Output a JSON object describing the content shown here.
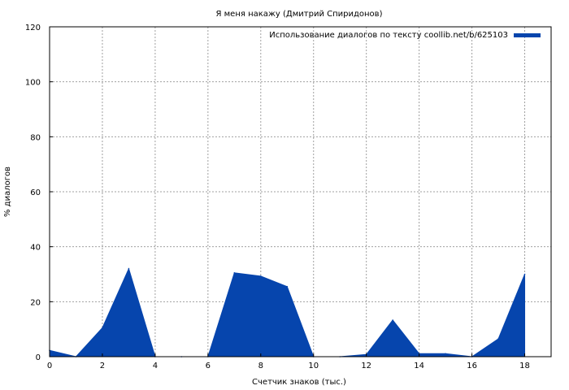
{
  "chart_data": {
    "type": "area",
    "title": "Я меня накажу (Дмитрий Спиридонов)",
    "xlabel": "Счетчик знаков (тыс.)",
    "ylabel": "% диалогов",
    "xlim": [
      0,
      19
    ],
    "ylim": [
      0,
      120
    ],
    "xticks": [
      0,
      2,
      4,
      6,
      8,
      10,
      12,
      14,
      16,
      18
    ],
    "yticks": [
      0,
      20,
      40,
      60,
      80,
      100,
      120
    ],
    "grid": true,
    "legend_position": "top-right",
    "series": [
      {
        "name": "Использование диалогов по тексту coollib.net/b/625103",
        "color": "#0645ad",
        "x": [
          0,
          1,
          2,
          3,
          4,
          5,
          6,
          7,
          8,
          9,
          10,
          11,
          12,
          13,
          14,
          15,
          16,
          17,
          18
        ],
        "y": [
          2.3,
          0,
          10.5,
          32,
          0,
          0,
          0,
          30.5,
          29.3,
          25.5,
          0,
          0,
          0.8,
          13.3,
          1.1,
          1.1,
          0,
          6.5,
          30
        ]
      }
    ]
  }
}
